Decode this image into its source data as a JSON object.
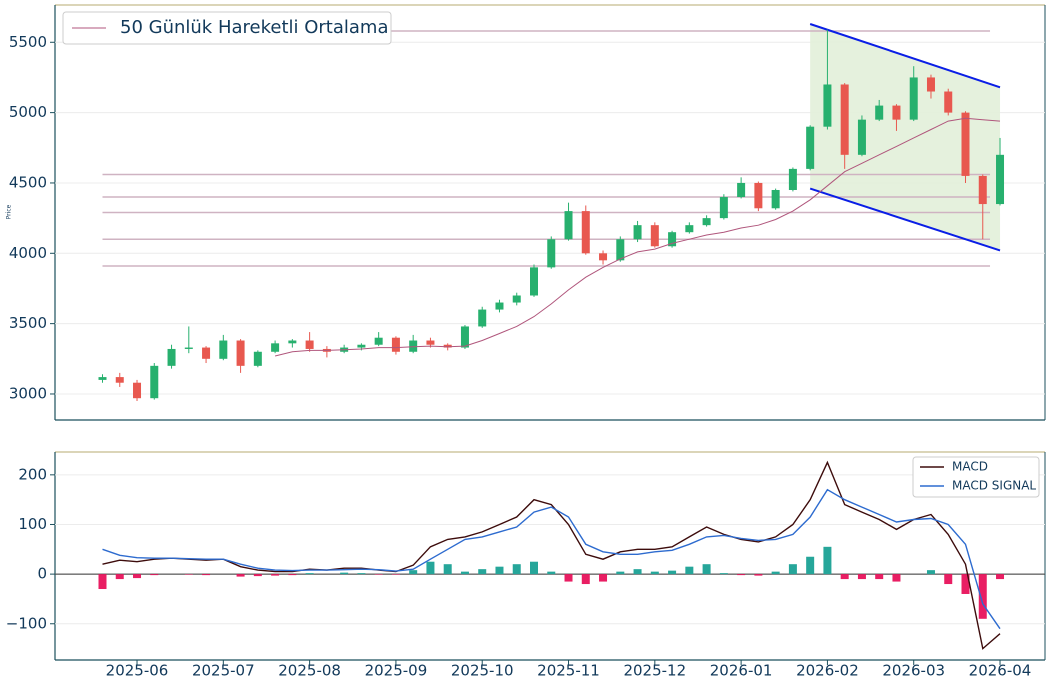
{
  "chart_data": [
    {
      "type": "candlestick",
      "ylabel": "Price",
      "open": [
        3100,
        3120,
        3080,
        2970,
        3200,
        3320,
        3330,
        3250,
        3380,
        3200,
        3300,
        3360,
        3380,
        3320,
        3300,
        3330,
        3350,
        3400,
        3300,
        3380,
        3350,
        3330,
        3480,
        3600,
        3650,
        3700,
        3900,
        4100,
        4300,
        4000,
        3950,
        4100,
        4200,
        4050,
        4150,
        4200,
        4250,
        4400,
        4500,
        4320,
        4450,
        4600,
        4900,
        5200,
        4700,
        4950,
        5050,
        4950,
        5250,
        5150,
        5000,
        4550,
        4350
      ],
      "high": [
        3140,
        3150,
        3100,
        3220,
        3350,
        3480,
        3340,
        3420,
        3390,
        3310,
        3380,
        3390,
        3440,
        3340,
        3350,
        3360,
        3440,
        3410,
        3420,
        3400,
        3360,
        3490,
        3620,
        3670,
        3720,
        3920,
        4120,
        4360,
        4340,
        4020,
        4120,
        4230,
        4220,
        4160,
        4220,
        4270,
        4420,
        4540,
        4510,
        4460,
        4610,
        4910,
        5590,
        5210,
        4980,
        5090,
        5060,
        5330,
        5270,
        5170,
        5010,
        4560,
        4820
      ],
      "low": [
        3080,
        3050,
        2950,
        2960,
        3180,
        3290,
        3220,
        3240,
        3150,
        3190,
        3290,
        3330,
        3300,
        3260,
        3290,
        3310,
        3340,
        3280,
        3290,
        3330,
        3310,
        3320,
        3470,
        3580,
        3630,
        3690,
        3890,
        4090,
        3990,
        3920,
        3940,
        4080,
        4040,
        4040,
        4140,
        4190,
        4240,
        4390,
        4300,
        4310,
        4440,
        4590,
        4880,
        4600,
        4690,
        4940,
        4870,
        4940,
        5100,
        4980,
        4500,
        4100,
        4340
      ],
      "close": [
        3120,
        3080,
        2970,
        3200,
        3320,
        3330,
        3250,
        3380,
        3200,
        3300,
        3360,
        3380,
        3320,
        3300,
        3330,
        3350,
        3400,
        3300,
        3380,
        3350,
        3330,
        3480,
        3600,
        3650,
        3700,
        3900,
        4100,
        4300,
        4000,
        3950,
        4100,
        4200,
        4050,
        4150,
        4200,
        4250,
        4400,
        4500,
        4320,
        4450,
        4600,
        4900,
        5200,
        4700,
        4950,
        5050,
        4950,
        5250,
        5150,
        5000,
        4550,
        4350,
        4700
      ],
      "up_color": "#27b06e",
      "down_color": "#e8584f",
      "series": [
        {
          "name": "50 Günlük Hareketli Ortalama",
          "color": "#b0567c",
          "values": [
            null,
            null,
            null,
            null,
            null,
            null,
            null,
            null,
            null,
            null,
            3270,
            3300,
            3310,
            3310,
            3315,
            3320,
            3330,
            3330,
            3335,
            3340,
            3335,
            3340,
            3380,
            3430,
            3480,
            3550,
            3640,
            3740,
            3830,
            3900,
            3960,
            4010,
            4030,
            4070,
            4100,
            4130,
            4150,
            4180,
            4200,
            4240,
            4300,
            4380,
            4480,
            4580,
            4640,
            4700,
            4760,
            4820,
            4880,
            4940,
            4960,
            4950,
            4940
          ]
        }
      ],
      "levels": [
        5580,
        4560,
        4400,
        4290,
        4100,
        3910
      ],
      "level_color": "#cfb3c2",
      "channel": {
        "upper": [
          5630,
          5180
        ],
        "lower": [
          4460,
          4020
        ],
        "color": "#0a1ee6",
        "fill": "#e2f0d9"
      },
      "ylim": [
        2815,
        5765
      ],
      "yticks": [
        3000,
        3500,
        4000,
        4500,
        5000,
        5500
      ],
      "grid": true,
      "legend": "upper left"
    },
    {
      "type": "macd",
      "categories": [
        null,
        null,
        "2025-06",
        null,
        null,
        null,
        null,
        "2025-07",
        null,
        null,
        null,
        null,
        "2025-08",
        null,
        null,
        null,
        null,
        "2025-09",
        null,
        null,
        null,
        null,
        "2025-10",
        null,
        null,
        null,
        null,
        "2025-11",
        null,
        null,
        null,
        null,
        "2025-12",
        null,
        null,
        null,
        null,
        "2026-01",
        null,
        null,
        null,
        null,
        "2026-02",
        null,
        null,
        null,
        null,
        "2026-03",
        null,
        null,
        null,
        null,
        "2026-04"
      ],
      "series": [
        {
          "name": "MACD",
          "color": "#3d0c0c",
          "values": [
            20,
            28,
            25,
            30,
            32,
            30,
            28,
            30,
            15,
            8,
            5,
            5,
            10,
            8,
            12,
            12,
            8,
            5,
            18,
            55,
            70,
            75,
            85,
            100,
            115,
            150,
            140,
            100,
            40,
            30,
            45,
            50,
            50,
            55,
            75,
            95,
            80,
            70,
            65,
            75,
            100,
            150,
            225,
            140,
            125,
            110,
            90,
            110,
            120,
            80,
            20,
            -150,
            -120
          ]
        },
        {
          "name": "MACD SIGNAL",
          "color": "#2d6bcf",
          "values": [
            50,
            38,
            33,
            32,
            32,
            31,
            30,
            30,
            20,
            12,
            8,
            7,
            8,
            8,
            9,
            10,
            9,
            6,
            10,
            30,
            50,
            70,
            75,
            85,
            95,
            125,
            135,
            115,
            60,
            45,
            40,
            40,
            45,
            48,
            60,
            75,
            78,
            72,
            68,
            70,
            80,
            115,
            170,
            150,
            135,
            120,
            105,
            110,
            112,
            100,
            60,
            -60,
            -110
          ]
        }
      ],
      "histogram": {
        "values": [
          -30,
          -10,
          -8,
          -2,
          0,
          -1,
          -2,
          0,
          -5,
          -4,
          -3,
          -2,
          2,
          0,
          3,
          2,
          -1,
          -1,
          8,
          25,
          20,
          5,
          10,
          15,
          20,
          25,
          5,
          -15,
          -20,
          -15,
          5,
          10,
          5,
          7,
          15,
          20,
          2,
          -2,
          -3,
          5,
          20,
          35,
          55,
          -10,
          -10,
          -10,
          -15,
          0,
          8,
          -20,
          -40,
          -90,
          -10
        ],
        "up_color": "#26a69a",
        "down_color": "#e91e63"
      },
      "ylim": [
        -173,
        246
      ],
      "yticks": [
        200,
        100,
        0,
        {
          "value": -100,
          "label": "−100"
        }
      ],
      "grid": true,
      "legend": "upper right"
    }
  ]
}
